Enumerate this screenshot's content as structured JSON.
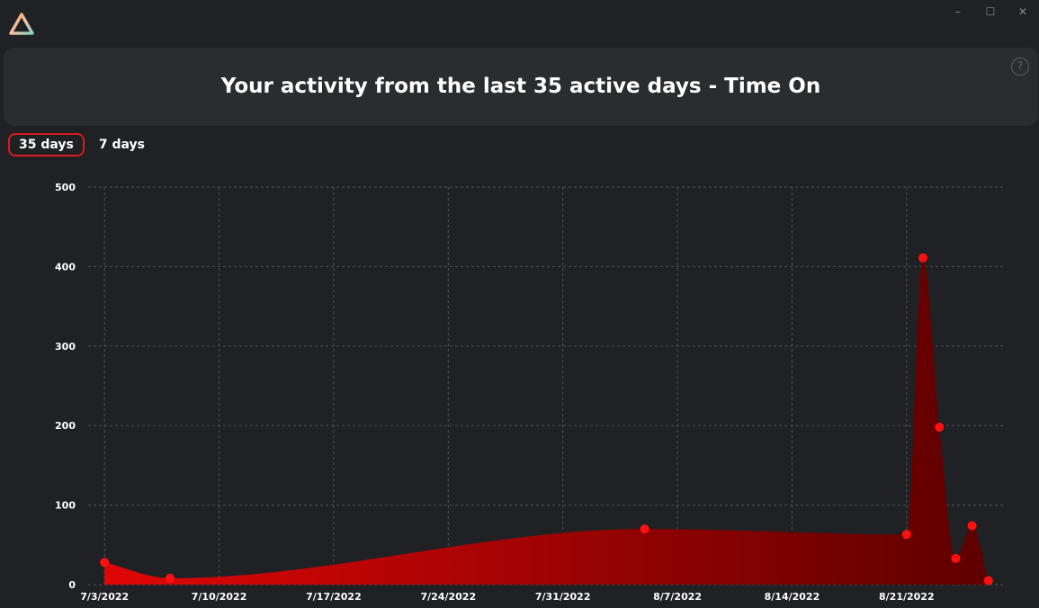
{
  "window": {
    "icons": {
      "logo": "triangle-logo-icon",
      "minimize": "minimize-icon",
      "maximize": "maximize-icon",
      "close": "close-icon"
    },
    "minimize_glyph": "–",
    "maximize_glyph": "☐",
    "close_glyph": "✕"
  },
  "header": {
    "title": "Your activity from the last 35 active days - Time On",
    "help_glyph": "?"
  },
  "tabs": [
    {
      "label": "35 days",
      "active": true
    },
    {
      "label": "7 days",
      "active": false
    }
  ],
  "colors": {
    "accent": "#d81d1d",
    "point": "#ff1010",
    "fill_start": "#e00606",
    "fill_end": "#5e0000",
    "grid": "#505357",
    "background": "#202124"
  },
  "chart_data": {
    "type": "area",
    "title": "",
    "xlabel": "",
    "ylabel": "",
    "x_ticks": [
      "7/3/2022",
      "7/10/2022",
      "7/17/2022",
      "7/24/2022",
      "7/31/2022",
      "8/7/2022",
      "8/14/2022",
      "8/21/2022"
    ],
    "y_ticks": [
      0,
      100,
      200,
      300,
      400,
      500
    ],
    "ylim": [
      0,
      500
    ],
    "xlim": [
      "2022-07-02",
      "2022-08-27"
    ],
    "grid": true,
    "legend": "none",
    "series": [
      {
        "points": [
          {
            "x": "2022-07-03",
            "y": 28
          },
          {
            "x": "2022-07-07",
            "y": 8
          },
          {
            "x": "2022-08-05",
            "y": 70
          },
          {
            "x": "2022-08-21",
            "y": 63
          },
          {
            "x": "2022-08-22",
            "y": 411
          },
          {
            "x": "2022-08-23",
            "y": 198
          },
          {
            "x": "2022-08-24",
            "y": 33
          },
          {
            "x": "2022-08-25",
            "y": 74
          },
          {
            "x": "2022-08-26",
            "y": 5
          }
        ]
      }
    ]
  }
}
